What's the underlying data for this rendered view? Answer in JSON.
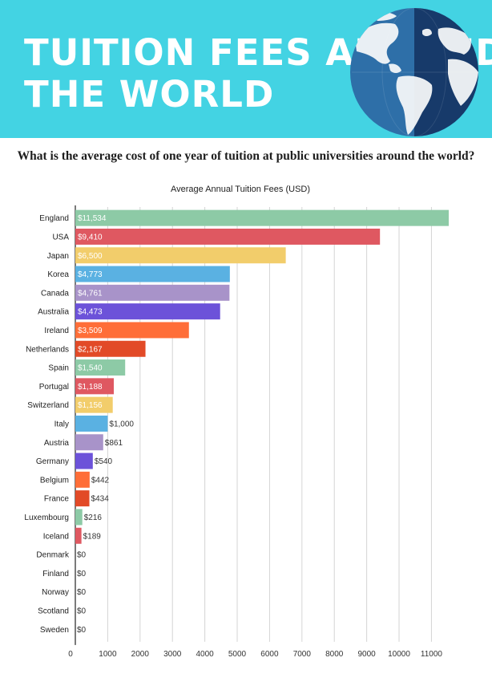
{
  "header": {
    "title_line1": "TUITION FEES AROUND",
    "title_line2": "THE WORLD",
    "globe_icon": "globe-icon",
    "colors": {
      "banner": "#43d3e3",
      "ocean_light": "#2e6fa8",
      "ocean_dark": "#173a6a",
      "land": "#f4f6f8"
    }
  },
  "question": "What is the average cost of one year of tuition at public universities around the world?",
  "chart_data": {
    "type": "bar",
    "orientation": "horizontal",
    "title": "Average Annual Tuition Fees (USD)",
    "xlabel": "",
    "ylabel": "",
    "xlim": [
      0,
      11534
    ],
    "x_ticks": [
      0,
      1000,
      2000,
      3000,
      4000,
      5000,
      6000,
      7000,
      8000,
      9000,
      10000,
      11000
    ],
    "grid": true,
    "legend": "none",
    "categories": [
      "England",
      "USA",
      "Japan",
      "Korea",
      "Canada",
      "Australia",
      "Ireland",
      "Netherlands",
      "Spain",
      "Portugal",
      "Switzerland",
      "Italy",
      "Austria",
      "Germany",
      "Belgium",
      "France",
      "Luxembourg",
      "Iceland",
      "Denmark",
      "Finland",
      "Norway",
      "Scotland",
      "Sweden"
    ],
    "values": [
      11534,
      9410,
      6500,
      4773,
      4761,
      4473,
      3509,
      2167,
      1540,
      1188,
      1156,
      1000,
      861,
      540,
      442,
      434,
      216,
      189,
      0,
      0,
      0,
      0,
      0
    ],
    "data_labels": [
      "$11,534",
      "$9,410",
      "$6,500",
      "$4,773",
      "$4,761",
      "$4,473",
      "$3,509",
      "$2,167",
      "$1,540",
      "$1,188",
      "$1,156",
      "$1,000",
      "$861",
      "$540",
      "$442",
      "$434",
      "$216",
      "$189",
      "$0",
      "$0",
      "$0",
      "$0",
      "$0"
    ],
    "colors": [
      "#8dcaa6",
      "#df5861",
      "#f2cd6b",
      "#5ab1e2",
      "#a893c9",
      "#6c52d9",
      "#ff6e38",
      "#e24a27"
    ]
  }
}
